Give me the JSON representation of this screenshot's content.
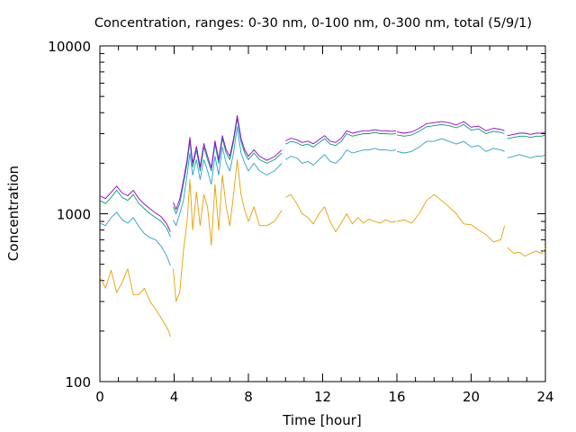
{
  "chart_data": {
    "type": "line",
    "title": "Concentration, ranges: 0-30 nm, 0-100 nm, 0-300 nm, total (5/9/1)",
    "xlabel": "Time [hour]",
    "ylabel": "Concentration",
    "xlim": [
      0,
      24
    ],
    "ylim": [
      100,
      10000
    ],
    "yscale": "log",
    "grid": false,
    "legend": "none",
    "x_ticks": [
      0,
      4,
      8,
      12,
      16,
      20,
      24
    ],
    "x_tick_labels": [
      "0",
      "4",
      "8",
      "12",
      "16",
      "20",
      "24"
    ],
    "y_ticks": [
      100,
      1000,
      10000
    ],
    "y_tick_labels": [
      "100",
      "1000",
      "10000"
    ],
    "series": [
      {
        "color": "#e6a000",
        "segments": [
          {
            "x": [
              0,
              0.3,
              0.6,
              0.9,
              1.2,
              1.5,
              1.8,
              2.1,
              2.4,
              2.7,
              3.0,
              3.3,
              3.6,
              3.7,
              3.8
            ],
            "y": [
              420,
              360,
              460,
              340,
              390,
              470,
              330,
              330,
              360,
              300,
              270,
              240,
              210,
              200,
              185
            ]
          },
          {
            "x": [
              3.95,
              4.1,
              4.3,
              4.5,
              4.7,
              4.85,
              5.0,
              5.2,
              5.4,
              5.6,
              5.8,
              6.0,
              6.2,
              6.4,
              6.6,
              6.8,
              7.0,
              7.2,
              7.4,
              7.6,
              7.8,
              8.0,
              8.3,
              8.6,
              9.0,
              9.4,
              9.8
            ],
            "y": [
              470,
              300,
              340,
              600,
              900,
              1600,
              800,
              1350,
              850,
              1300,
              1100,
              650,
              1500,
              800,
              1700,
              1100,
              850,
              1300,
              2100,
              1300,
              1050,
              900,
              1100,
              850,
              850,
              900,
              1050
            ]
          },
          {
            "x": [
              10.0,
              10.3,
              10.6,
              10.9,
              11.2,
              11.5,
              11.8,
              12.1,
              12.4,
              12.7,
              13.0,
              13.3,
              13.6,
              13.9,
              14.2,
              14.5,
              14.8,
              15.1,
              15.4,
              15.7,
              15.95
            ],
            "y": [
              1250,
              1300,
              1150,
              1000,
              950,
              870,
              1000,
              1100,
              900,
              780,
              880,
              1000,
              870,
              950,
              880,
              930,
              900,
              880,
              920,
              890,
              900
            ]
          },
          {
            "x": [
              16.0,
              16.4,
              16.8,
              17.2,
              17.6,
              18.0,
              18.4,
              18.8,
              19.2,
              19.6,
              20.0,
              20.4,
              20.8,
              21.2,
              21.6,
              21.8
            ],
            "y": [
              900,
              920,
              880,
              1000,
              1200,
              1300,
              1200,
              1100,
              1000,
              870,
              860,
              800,
              750,
              680,
              700,
              850
            ]
          },
          {
            "x": [
              21.95,
              22.3,
              22.6,
              22.9,
              23.2,
              23.5,
              23.8,
              24.0
            ],
            "y": [
              630,
              580,
              590,
              560,
              580,
              600,
              580,
              620
            ]
          }
        ]
      },
      {
        "color": "#2a9fd0",
        "segments": [
          {
            "x": [
              0,
              0.3,
              0.6,
              0.9,
              1.2,
              1.5,
              1.8,
              2.1,
              2.4,
              2.7,
              3.0,
              3.3,
              3.6,
              3.8
            ],
            "y": [
              880,
              850,
              950,
              1020,
              920,
              880,
              950,
              840,
              760,
              720,
              700,
              640,
              560,
              490
            ]
          },
          {
            "x": [
              3.95,
              4.1,
              4.3,
              4.5,
              4.7,
              4.85,
              5.0,
              5.2,
              5.4,
              5.6,
              5.8,
              6.0,
              6.2,
              6.4,
              6.6,
              6.8,
              7.0,
              7.2,
              7.4,
              7.6,
              7.8,
              8.0,
              8.3,
              8.6,
              9.0,
              9.4,
              9.8
            ],
            "y": [
              920,
              850,
              1000,
              1200,
              1700,
              2300,
              1700,
              2100,
              1600,
              2100,
              1800,
              1500,
              2200,
              1700,
              2500,
              2000,
              1800,
              2300,
              3300,
              2300,
              2000,
              1800,
              2000,
              1800,
              1700,
              1800,
              2000
            ]
          },
          {
            "x": [
              10.0,
              10.3,
              10.6,
              10.9,
              11.2,
              11.5,
              11.8,
              12.1,
              12.4,
              12.7,
              13.0,
              13.3,
              13.6,
              13.9,
              14.2,
              14.5,
              14.8,
              15.1,
              15.4,
              15.7,
              15.95
            ],
            "y": [
              2100,
              2200,
              2150,
              2000,
              2050,
              1950,
              2100,
              2250,
              2050,
              2000,
              2150,
              2400,
              2300,
              2350,
              2400,
              2400,
              2450,
              2400,
              2400,
              2380,
              2400
            ]
          },
          {
            "x": [
              16.0,
              16.4,
              16.8,
              17.2,
              17.6,
              18.0,
              18.4,
              18.8,
              19.2,
              19.6,
              20.0,
              20.4,
              20.8,
              21.2,
              21.6,
              21.8
            ],
            "y": [
              2350,
              2300,
              2350,
              2500,
              2700,
              2700,
              2800,
              2700,
              2600,
              2700,
              2500,
              2550,
              2350,
              2450,
              2400,
              2350
            ]
          },
          {
            "x": [
              21.95,
              22.3,
              22.6,
              22.9,
              23.2,
              23.5,
              23.8,
              24.0
            ],
            "y": [
              2150,
              2200,
              2250,
              2200,
              2150,
              2200,
              2200,
              2250
            ]
          }
        ]
      },
      {
        "color": "#009e73",
        "segments": [
          {
            "x": [
              0,
              0.3,
              0.6,
              0.9,
              1.2,
              1.5,
              1.8,
              2.1,
              2.4,
              2.7,
              3.0,
              3.3,
              3.6,
              3.8
            ],
            "y": [
              1200,
              1150,
              1250,
              1380,
              1250,
              1200,
              1300,
              1150,
              1070,
              1000,
              950,
              900,
              820,
              730
            ]
          },
          {
            "x": [
              3.95,
              4.1,
              4.3,
              4.5,
              4.7,
              4.85,
              5.0,
              5.2,
              5.4,
              5.6,
              5.8,
              6.0,
              6.2,
              6.4,
              6.6,
              6.8,
              7.0,
              7.2,
              7.4,
              7.6,
              7.8,
              8.0,
              8.3,
              8.6,
              9.0,
              9.4,
              9.8
            ],
            "y": [
              1100,
              1000,
              1150,
              1500,
              2000,
              2700,
              1900,
              2400,
              1800,
              2500,
              2100,
              1800,
              2600,
              2000,
              2800,
              2300,
              2100,
              2700,
              3700,
              2700,
              2300,
              2100,
              2300,
              2100,
              2000,
              2100,
              2300
            ]
          },
          {
            "x": [
              10.0,
              10.3,
              10.6,
              10.9,
              11.2,
              11.5,
              11.8,
              12.1,
              12.4,
              12.7,
              13.0,
              13.3,
              13.6,
              13.9,
              14.2,
              14.5,
              14.8,
              15.1,
              15.4,
              15.7,
              15.95
            ],
            "y": [
              2600,
              2700,
              2650,
              2550,
              2600,
              2500,
              2650,
              2800,
              2600,
              2550,
              2700,
              3000,
              2900,
              2950,
              3000,
              3000,
              3050,
              3000,
              3000,
              2980,
              3000
            ]
          },
          {
            "x": [
              16.0,
              16.4,
              16.8,
              17.2,
              17.6,
              18.0,
              18.4,
              18.8,
              19.2,
              19.6,
              20.0,
              20.4,
              20.8,
              21.2,
              21.6,
              21.8
            ],
            "y": [
              2950,
              2900,
              2950,
              3100,
              3300,
              3350,
              3400,
              3350,
              3250,
              3400,
              3150,
              3200,
              3000,
              3100,
              3050,
              3000
            ]
          },
          {
            "x": [
              21.95,
              22.3,
              22.6,
              22.9,
              23.2,
              23.5,
              23.8,
              24.0
            ],
            "y": [
              2800,
              2850,
              2900,
              2900,
              2850,
              2900,
              2900,
              2950
            ]
          }
        ]
      },
      {
        "color": "#9400d3",
        "segments": [
          {
            "x": [
              0,
              0.3,
              0.6,
              0.9,
              1.2,
              1.5,
              1.8,
              2.1,
              2.4,
              2.7,
              3.0,
              3.3,
              3.6,
              3.8
            ],
            "y": [
              1280,
              1230,
              1340,
              1460,
              1330,
              1280,
              1380,
              1230,
              1140,
              1070,
              1010,
              960,
              870,
              780
            ]
          },
          {
            "x": [
              3.95,
              4.1,
              4.3,
              4.5,
              4.7,
              4.85,
              5.0,
              5.2,
              5.4,
              5.6,
              5.8,
              6.0,
              6.2,
              6.4,
              6.6,
              6.8,
              7.0,
              7.2,
              7.4,
              7.6,
              7.8,
              8.0,
              8.3,
              8.6,
              9.0,
              9.4,
              9.8
            ],
            "y": [
              1170,
              1060,
              1220,
              1580,
              2100,
              2850,
              2000,
              2520,
              1900,
              2620,
              2200,
              1880,
              2720,
              2100,
              2920,
              2400,
              2200,
              2800,
              3850,
              2820,
              2400,
              2200,
              2400,
              2200,
              2080,
              2190,
              2400
            ]
          },
          {
            "x": [
              10.0,
              10.3,
              10.6,
              10.9,
              11.2,
              11.5,
              11.8,
              12.1,
              12.4,
              12.7,
              13.0,
              13.3,
              13.6,
              13.9,
              14.2,
              14.5,
              14.8,
              15.1,
              15.4,
              15.7,
              15.95
            ],
            "y": [
              2720,
              2820,
              2760,
              2660,
              2710,
              2610,
              2760,
              2920,
              2710,
              2660,
              2820,
              3120,
              3020,
              3070,
              3120,
              3120,
              3170,
              3120,
              3120,
              3100,
              3120
            ]
          },
          {
            "x": [
              16.0,
              16.4,
              16.8,
              17.2,
              17.6,
              18.0,
              18.4,
              18.8,
              19.2,
              19.6,
              20.0,
              20.4,
              20.8,
              21.2,
              21.6,
              21.8
            ],
            "y": [
              3070,
              3020,
              3070,
              3230,
              3440,
              3490,
              3540,
              3490,
              3380,
              3540,
              3280,
              3330,
              3120,
              3230,
              3180,
              3120
            ]
          },
          {
            "x": [
              21.95,
              22.3,
              22.6,
              22.9,
              23.2,
              23.5,
              23.8,
              24.0
            ],
            "y": [
              2920,
              2970,
              3020,
              3020,
              2970,
              3020,
              3020,
              3070
            ]
          }
        ]
      }
    ]
  }
}
